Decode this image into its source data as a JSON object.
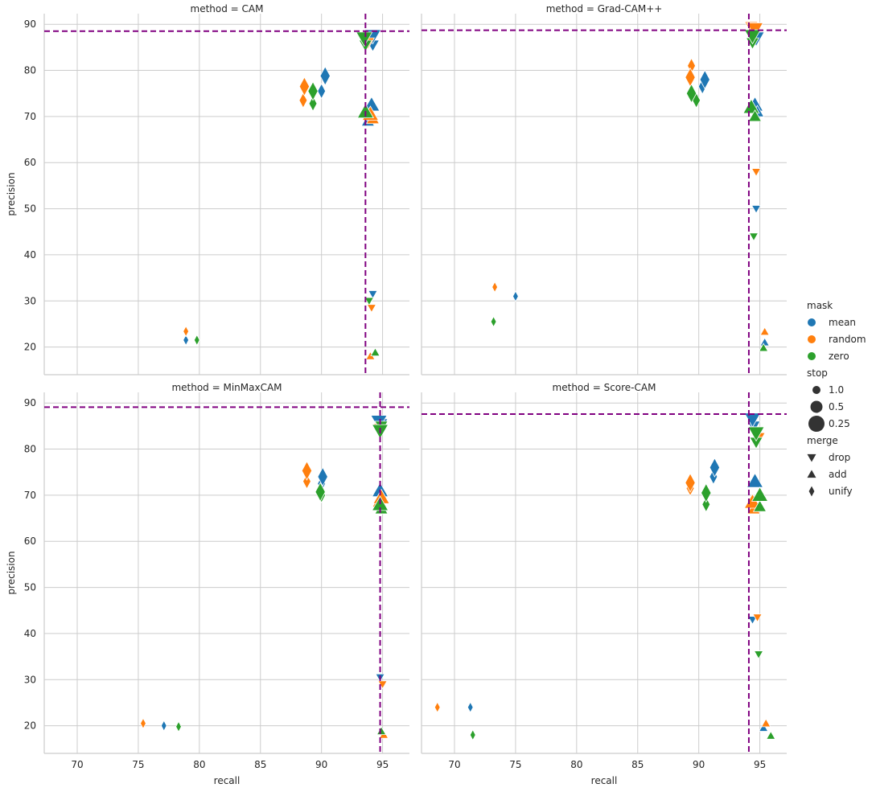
{
  "chart_data": {
    "type": "scatter",
    "x_label": "recall",
    "y_label": "precision",
    "x_ticks": [
      70,
      75,
      80,
      85,
      90,
      95
    ],
    "y_ticks": [
      20,
      30,
      40,
      50,
      60,
      70,
      80,
      90
    ],
    "xlim": [
      67.3,
      97.2
    ],
    "ylim": [
      14,
      92.3
    ],
    "grid": true,
    "legend": {
      "placement": "right",
      "mask_title": "mask",
      "mask": [
        {
          "label": "mean",
          "color": "#1f77b4"
        },
        {
          "label": "random",
          "color": "#ff7f0e"
        },
        {
          "label": "zero",
          "color": "#2ca02c"
        }
      ],
      "stop_title": "stop",
      "stop": [
        {
          "label": "1.0",
          "size": "small"
        },
        {
          "label": "0.5",
          "size": "medium"
        },
        {
          "label": "0.25",
          "size": "large"
        }
      ],
      "merge_title": "merge",
      "merge": [
        {
          "label": "drop",
          "marker": "triangle-down"
        },
        {
          "label": "add",
          "marker": "triangle-up"
        },
        {
          "label": "unify",
          "marker": "thin-diamond"
        }
      ]
    },
    "reference_line_color": "#800080",
    "panels": [
      {
        "title": "method = CAM",
        "ref_x": 93.6,
        "ref_y": 88.5,
        "points": [
          {
            "mask": "mean",
            "stop": "1.0",
            "merge": "unify",
            "x": 78.9,
            "y": 21.5
          },
          {
            "mask": "random",
            "stop": "1.0",
            "merge": "unify",
            "x": 78.9,
            "y": 23.4
          },
          {
            "mask": "zero",
            "stop": "1.0",
            "merge": "unify",
            "x": 79.8,
            "y": 21.5
          },
          {
            "mask": "mean",
            "stop": "0.5",
            "merge": "unify",
            "x": 90.0,
            "y": 75.5
          },
          {
            "mask": "mean",
            "stop": "0.25",
            "merge": "unify",
            "x": 90.3,
            "y": 78.8
          },
          {
            "mask": "random",
            "stop": "0.5",
            "merge": "unify",
            "x": 88.5,
            "y": 73.5
          },
          {
            "mask": "random",
            "stop": "0.25",
            "merge": "unify",
            "x": 88.6,
            "y": 76.5
          },
          {
            "mask": "zero",
            "stop": "0.5",
            "merge": "unify",
            "x": 89.3,
            "y": 72.8
          },
          {
            "mask": "zero",
            "stop": "0.25",
            "merge": "unify",
            "x": 89.3,
            "y": 75.5
          },
          {
            "mask": "mean",
            "stop": "1.0",
            "merge": "drop",
            "x": 94.2,
            "y": 31.5
          },
          {
            "mask": "zero",
            "stop": "1.0",
            "merge": "drop",
            "x": 93.9,
            "y": 30.0
          },
          {
            "mask": "random",
            "stop": "1.0",
            "merge": "drop",
            "x": 94.1,
            "y": 28.5
          },
          {
            "mask": "random",
            "stop": "1.0",
            "merge": "add",
            "x": 94.0,
            "y": 18.0
          },
          {
            "mask": "zero",
            "stop": "1.0",
            "merge": "add",
            "x": 94.4,
            "y": 18.8
          },
          {
            "mask": "mean",
            "stop": "0.5",
            "merge": "drop",
            "x": 94.2,
            "y": 85.5
          },
          {
            "mask": "mean",
            "stop": "0.25",
            "merge": "drop",
            "x": 94.2,
            "y": 87.5
          },
          {
            "mask": "random",
            "stop": "0.5",
            "merge": "drop",
            "x": 93.8,
            "y": 86.0
          },
          {
            "mask": "zero",
            "stop": "0.5",
            "merge": "drop",
            "x": 93.6,
            "y": 85.5
          },
          {
            "mask": "zero",
            "stop": "0.25",
            "merge": "drop",
            "x": 93.5,
            "y": 87.0
          },
          {
            "mask": "mean",
            "stop": "0.5",
            "merge": "add",
            "x": 93.8,
            "y": 69.0
          },
          {
            "mask": "mean",
            "stop": "0.25",
            "merge": "add",
            "x": 94.1,
            "y": 72.5
          },
          {
            "mask": "random",
            "stop": "0.5",
            "merge": "add",
            "x": 94.2,
            "y": 69.5
          },
          {
            "mask": "random",
            "stop": "0.25",
            "merge": "add",
            "x": 94.0,
            "y": 70.5
          },
          {
            "mask": "zero",
            "stop": "0.25",
            "merge": "add",
            "x": 93.6,
            "y": 71.0
          }
        ]
      },
      {
        "title": "method = Grad-CAM++",
        "ref_x": 94.1,
        "ref_y": 88.7,
        "points": [
          {
            "mask": "mean",
            "stop": "1.0",
            "merge": "unify",
            "x": 75.0,
            "y": 31.0
          },
          {
            "mask": "random",
            "stop": "1.0",
            "merge": "unify",
            "x": 73.3,
            "y": 33.0
          },
          {
            "mask": "zero",
            "stop": "1.0",
            "merge": "unify",
            "x": 73.2,
            "y": 25.5
          },
          {
            "mask": "mean",
            "stop": "0.5",
            "merge": "unify",
            "x": 90.3,
            "y": 76.5
          },
          {
            "mask": "mean",
            "stop": "0.25",
            "merge": "unify",
            "x": 90.5,
            "y": 78.0
          },
          {
            "mask": "random",
            "stop": "0.5",
            "merge": "unify",
            "x": 89.4,
            "y": 81.0
          },
          {
            "mask": "random",
            "stop": "0.25",
            "merge": "unify",
            "x": 89.3,
            "y": 78.5
          },
          {
            "mask": "zero",
            "stop": "0.5",
            "merge": "unify",
            "x": 89.8,
            "y": 73.5
          },
          {
            "mask": "zero",
            "stop": "0.25",
            "merge": "unify",
            "x": 89.4,
            "y": 75.0
          },
          {
            "mask": "mean",
            "stop": "1.0",
            "merge": "drop",
            "x": 94.7,
            "y": 50.0
          },
          {
            "mask": "random",
            "stop": "1.0",
            "merge": "drop",
            "x": 94.7,
            "y": 58.0
          },
          {
            "mask": "zero",
            "stop": "1.0",
            "merge": "drop",
            "x": 94.5,
            "y": 44.0
          },
          {
            "mask": "mean",
            "stop": "1.0",
            "merge": "add",
            "x": 95.4,
            "y": 21.0
          },
          {
            "mask": "random",
            "stop": "1.0",
            "merge": "add",
            "x": 95.4,
            "y": 23.3
          },
          {
            "mask": "zero",
            "stop": "1.0",
            "merge": "add",
            "x": 95.3,
            "y": 19.8
          },
          {
            "mask": "mean",
            "stop": "0.25",
            "merge": "drop",
            "x": 94.7,
            "y": 87.0
          },
          {
            "mask": "random",
            "stop": "0.5",
            "merge": "drop",
            "x": 94.3,
            "y": 89.5
          },
          {
            "mask": "random",
            "stop": "0.25",
            "merge": "drop",
            "x": 94.6,
            "y": 89.0
          },
          {
            "mask": "zero",
            "stop": "0.5",
            "merge": "drop",
            "x": 94.4,
            "y": 86.0
          },
          {
            "mask": "zero",
            "stop": "0.25",
            "merge": "drop",
            "x": 94.4,
            "y": 87.5
          },
          {
            "mask": "mean",
            "stop": "0.25",
            "merge": "add",
            "x": 94.6,
            "y": 72.5
          },
          {
            "mask": "mean",
            "stop": "0.5",
            "merge": "add",
            "x": 94.8,
            "y": 71.0
          },
          {
            "mask": "zero",
            "stop": "0.25",
            "merge": "add",
            "x": 94.3,
            "y": 72.0
          },
          {
            "mask": "zero",
            "stop": "0.5",
            "merge": "add",
            "x": 94.6,
            "y": 70.0
          }
        ]
      },
      {
        "title": "method = MinMaxCAM",
        "ref_x": 94.8,
        "ref_y": 89.1,
        "points": [
          {
            "mask": "mean",
            "stop": "1.0",
            "merge": "unify",
            "x": 77.1,
            "y": 20.0
          },
          {
            "mask": "random",
            "stop": "1.0",
            "merge": "unify",
            "x": 75.4,
            "y": 20.5
          },
          {
            "mask": "zero",
            "stop": "1.0",
            "merge": "unify",
            "x": 78.3,
            "y": 19.8
          },
          {
            "mask": "mean",
            "stop": "0.5",
            "merge": "unify",
            "x": 90.0,
            "y": 72.5
          },
          {
            "mask": "mean",
            "stop": "0.25",
            "merge": "unify",
            "x": 90.1,
            "y": 74.0
          },
          {
            "mask": "random",
            "stop": "0.5",
            "merge": "unify",
            "x": 88.8,
            "y": 73.0
          },
          {
            "mask": "random",
            "stop": "0.25",
            "merge": "unify",
            "x": 88.8,
            "y": 75.3
          },
          {
            "mask": "zero",
            "stop": "0.5",
            "merge": "unify",
            "x": 90.0,
            "y": 70.0
          },
          {
            "mask": "zero",
            "stop": "0.25",
            "merge": "unify",
            "x": 89.9,
            "y": 70.7
          },
          {
            "mask": "mean",
            "stop": "1.0",
            "merge": "drop",
            "x": 94.8,
            "y": 30.5
          },
          {
            "mask": "random",
            "stop": "1.0",
            "merge": "drop",
            "x": 95.0,
            "y": 29.0
          },
          {
            "mask": "random",
            "stop": "1.0",
            "merge": "add",
            "x": 95.1,
            "y": 18.0
          },
          {
            "mask": "zero",
            "stop": "1.0",
            "merge": "add",
            "x": 94.9,
            "y": 18.8
          },
          {
            "mask": "mean",
            "stop": "0.5",
            "merge": "drop",
            "x": 94.9,
            "y": 85.5
          },
          {
            "mask": "mean",
            "stop": "0.25",
            "merge": "drop",
            "x": 94.7,
            "y": 86.0
          },
          {
            "mask": "random",
            "stop": "0.5",
            "merge": "drop",
            "x": 94.8,
            "y": 84.5
          },
          {
            "mask": "zero",
            "stop": "0.5",
            "merge": "drop",
            "x": 94.9,
            "y": 85.0
          },
          {
            "mask": "zero",
            "stop": "0.25",
            "merge": "drop",
            "x": 94.8,
            "y": 84.0
          },
          {
            "mask": "mean",
            "stop": "0.5",
            "merge": "add",
            "x": 94.8,
            "y": 69.5
          },
          {
            "mask": "mean",
            "stop": "0.25",
            "merge": "add",
            "x": 94.8,
            "y": 71.0
          },
          {
            "mask": "random",
            "stop": "0.5",
            "merge": "add",
            "x": 94.7,
            "y": 68.5
          },
          {
            "mask": "random",
            "stop": "0.25",
            "merge": "add",
            "x": 94.9,
            "y": 69.5
          },
          {
            "mask": "zero",
            "stop": "0.5",
            "merge": "add",
            "x": 94.9,
            "y": 67.0
          },
          {
            "mask": "zero",
            "stop": "0.25",
            "merge": "add",
            "x": 94.8,
            "y": 68.0
          }
        ]
      },
      {
        "title": "method = Score-CAM",
        "ref_x": 94.1,
        "ref_y": 87.6,
        "points": [
          {
            "mask": "mean",
            "stop": "1.0",
            "merge": "unify",
            "x": 71.3,
            "y": 24.0
          },
          {
            "mask": "random",
            "stop": "1.0",
            "merge": "unify",
            "x": 68.6,
            "y": 24.0
          },
          {
            "mask": "zero",
            "stop": "1.0",
            "merge": "unify",
            "x": 71.5,
            "y": 18.0
          },
          {
            "mask": "mean",
            "stop": "0.5",
            "merge": "unify",
            "x": 91.2,
            "y": 74.0
          },
          {
            "mask": "mean",
            "stop": "0.25",
            "merge": "unify",
            "x": 91.3,
            "y": 76.0
          },
          {
            "mask": "random",
            "stop": "0.5",
            "merge": "unify",
            "x": 89.3,
            "y": 71.5
          },
          {
            "mask": "random",
            "stop": "0.25",
            "merge": "unify",
            "x": 89.3,
            "y": 72.7
          },
          {
            "mask": "zero",
            "stop": "0.5",
            "merge": "unify",
            "x": 90.6,
            "y": 68.0
          },
          {
            "mask": "zero",
            "stop": "0.25",
            "merge": "unify",
            "x": 90.6,
            "y": 70.5
          },
          {
            "mask": "mean",
            "stop": "1.0",
            "merge": "drop",
            "x": 94.4,
            "y": 43.0
          },
          {
            "mask": "random",
            "stop": "1.0",
            "merge": "drop",
            "x": 94.8,
            "y": 43.5
          },
          {
            "mask": "zero",
            "stop": "1.0",
            "merge": "drop",
            "x": 94.9,
            "y": 35.5
          },
          {
            "mask": "mean",
            "stop": "1.0",
            "merge": "add",
            "x": 95.3,
            "y": 19.5
          },
          {
            "mask": "random",
            "stop": "1.0",
            "merge": "add",
            "x": 95.5,
            "y": 20.5
          },
          {
            "mask": "zero",
            "stop": "1.0",
            "merge": "add",
            "x": 95.9,
            "y": 17.8
          },
          {
            "mask": "mean",
            "stop": "0.5",
            "merge": "drop",
            "x": 94.5,
            "y": 85.0
          },
          {
            "mask": "mean",
            "stop": "0.25",
            "merge": "drop",
            "x": 94.4,
            "y": 86.5
          },
          {
            "mask": "random",
            "stop": "0.5",
            "merge": "drop",
            "x": 94.9,
            "y": 82.5
          },
          {
            "mask": "zero",
            "stop": "0.5",
            "merge": "drop",
            "x": 94.7,
            "y": 81.5
          },
          {
            "mask": "zero",
            "stop": "0.25",
            "merge": "drop",
            "x": 94.7,
            "y": 83.5
          },
          {
            "mask": "mean",
            "stop": "0.25",
            "merge": "add",
            "x": 94.6,
            "y": 73.0
          },
          {
            "mask": "random",
            "stop": "0.5",
            "merge": "add",
            "x": 94.5,
            "y": 67.0
          },
          {
            "mask": "random",
            "stop": "0.25",
            "merge": "add",
            "x": 94.4,
            "y": 68.5
          },
          {
            "mask": "zero",
            "stop": "0.5",
            "merge": "add",
            "x": 95.0,
            "y": 67.5
          },
          {
            "mask": "zero",
            "stop": "0.25",
            "merge": "add",
            "x": 95.0,
            "y": 70.0
          }
        ]
      }
    ]
  }
}
